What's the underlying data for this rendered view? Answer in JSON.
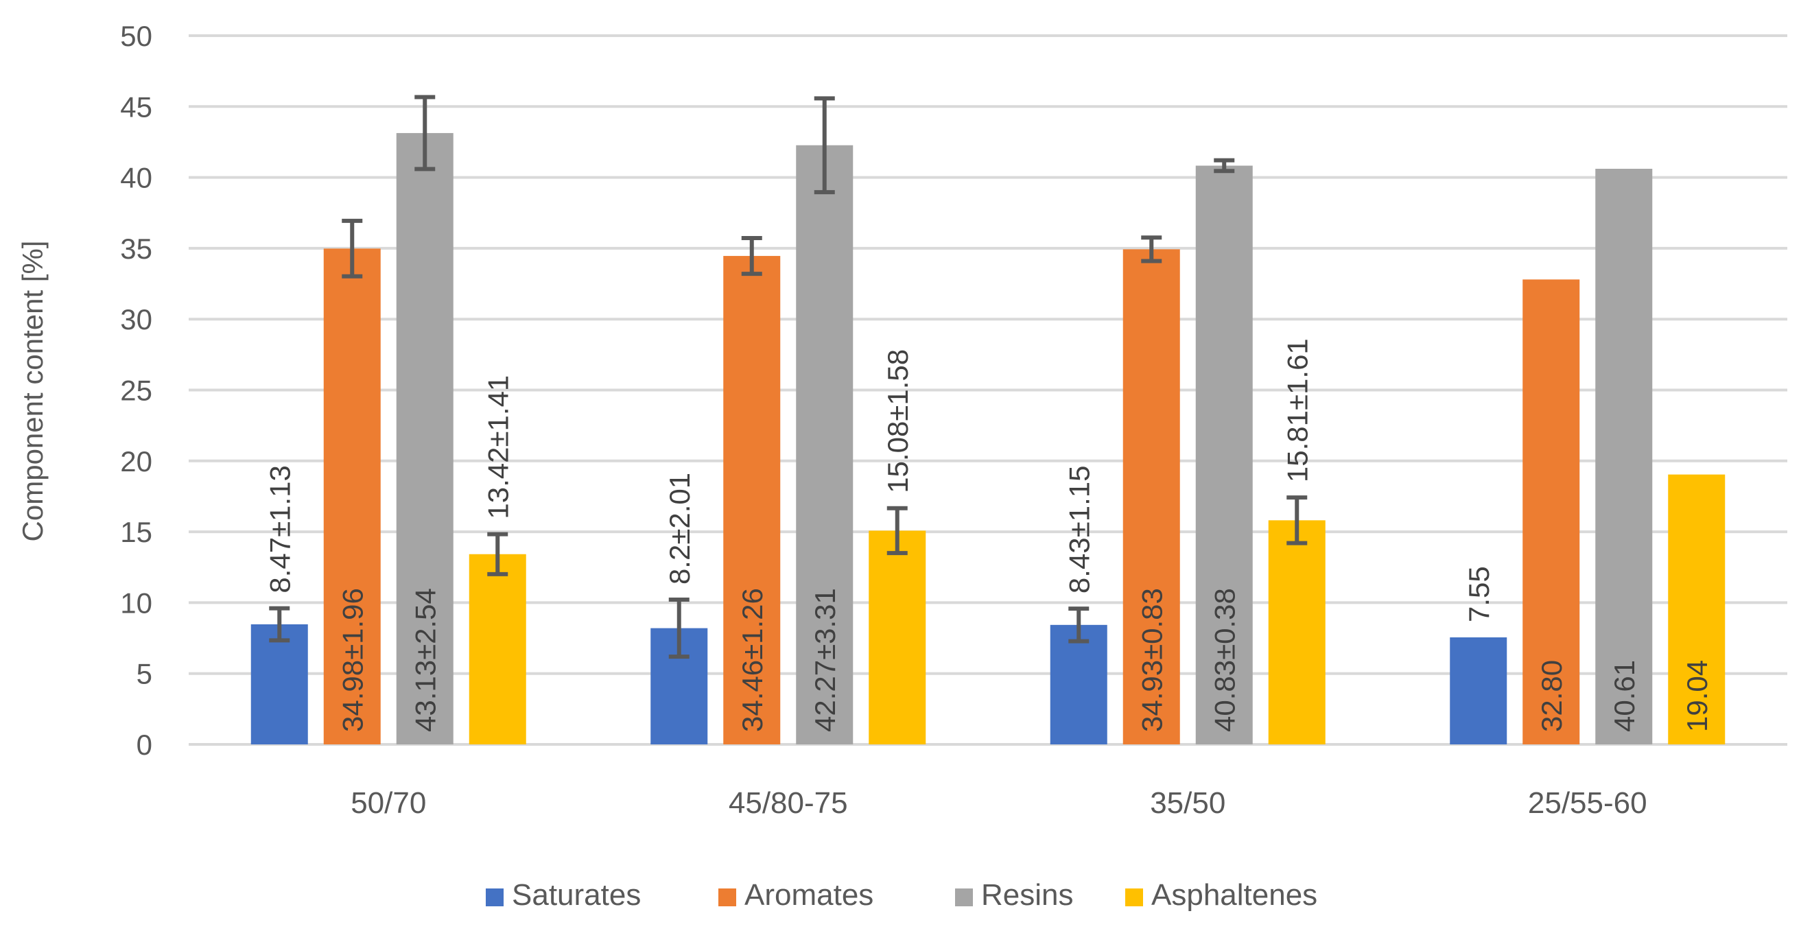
{
  "chart_data": {
    "type": "bar",
    "title": "",
    "xlabel": "",
    "ylabel": "Component content  [%]",
    "ylim": [
      0,
      50
    ],
    "yticks": [
      0,
      5,
      10,
      15,
      20,
      25,
      30,
      35,
      40,
      45,
      50
    ],
    "grid": true,
    "legend_position": "bottom",
    "categories": [
      "50/70",
      "45/80-75",
      "35/50",
      "25/55-60"
    ],
    "series": [
      {
        "name": "Saturates",
        "color": "#4472C4",
        "values": [
          8.47,
          8.2,
          8.43,
          7.55
        ],
        "errors": [
          1.13,
          2.01,
          1.15,
          null
        ],
        "labels": [
          "8.47±1.13",
          "8.2±2.01",
          "8.43±1.15",
          "7.55"
        ]
      },
      {
        "name": "Aromates",
        "color": "#ED7D31",
        "values": [
          34.98,
          34.46,
          34.93,
          32.8
        ],
        "errors": [
          1.96,
          1.26,
          0.83,
          null
        ],
        "labels": [
          "34.98±1.96",
          "34.46±1.26",
          "34.93±0.83",
          "32.80"
        ]
      },
      {
        "name": "Resins",
        "color": "#A5A5A5",
        "values": [
          43.13,
          42.27,
          40.83,
          40.61
        ],
        "errors": [
          2.54,
          3.31,
          0.38,
          null
        ],
        "labels": [
          "43.13±2.54",
          "42.27±3.31",
          "40.83±0.38",
          "40.61"
        ]
      },
      {
        "name": "Asphaltenes",
        "color": "#FFC000",
        "values": [
          13.42,
          15.08,
          15.81,
          19.04
        ],
        "errors": [
          1.41,
          1.58,
          1.61,
          null
        ],
        "labels": [
          "13.42±1.41",
          "15.08±1.58",
          "15.81±1.61",
          "19.04"
        ]
      }
    ]
  }
}
